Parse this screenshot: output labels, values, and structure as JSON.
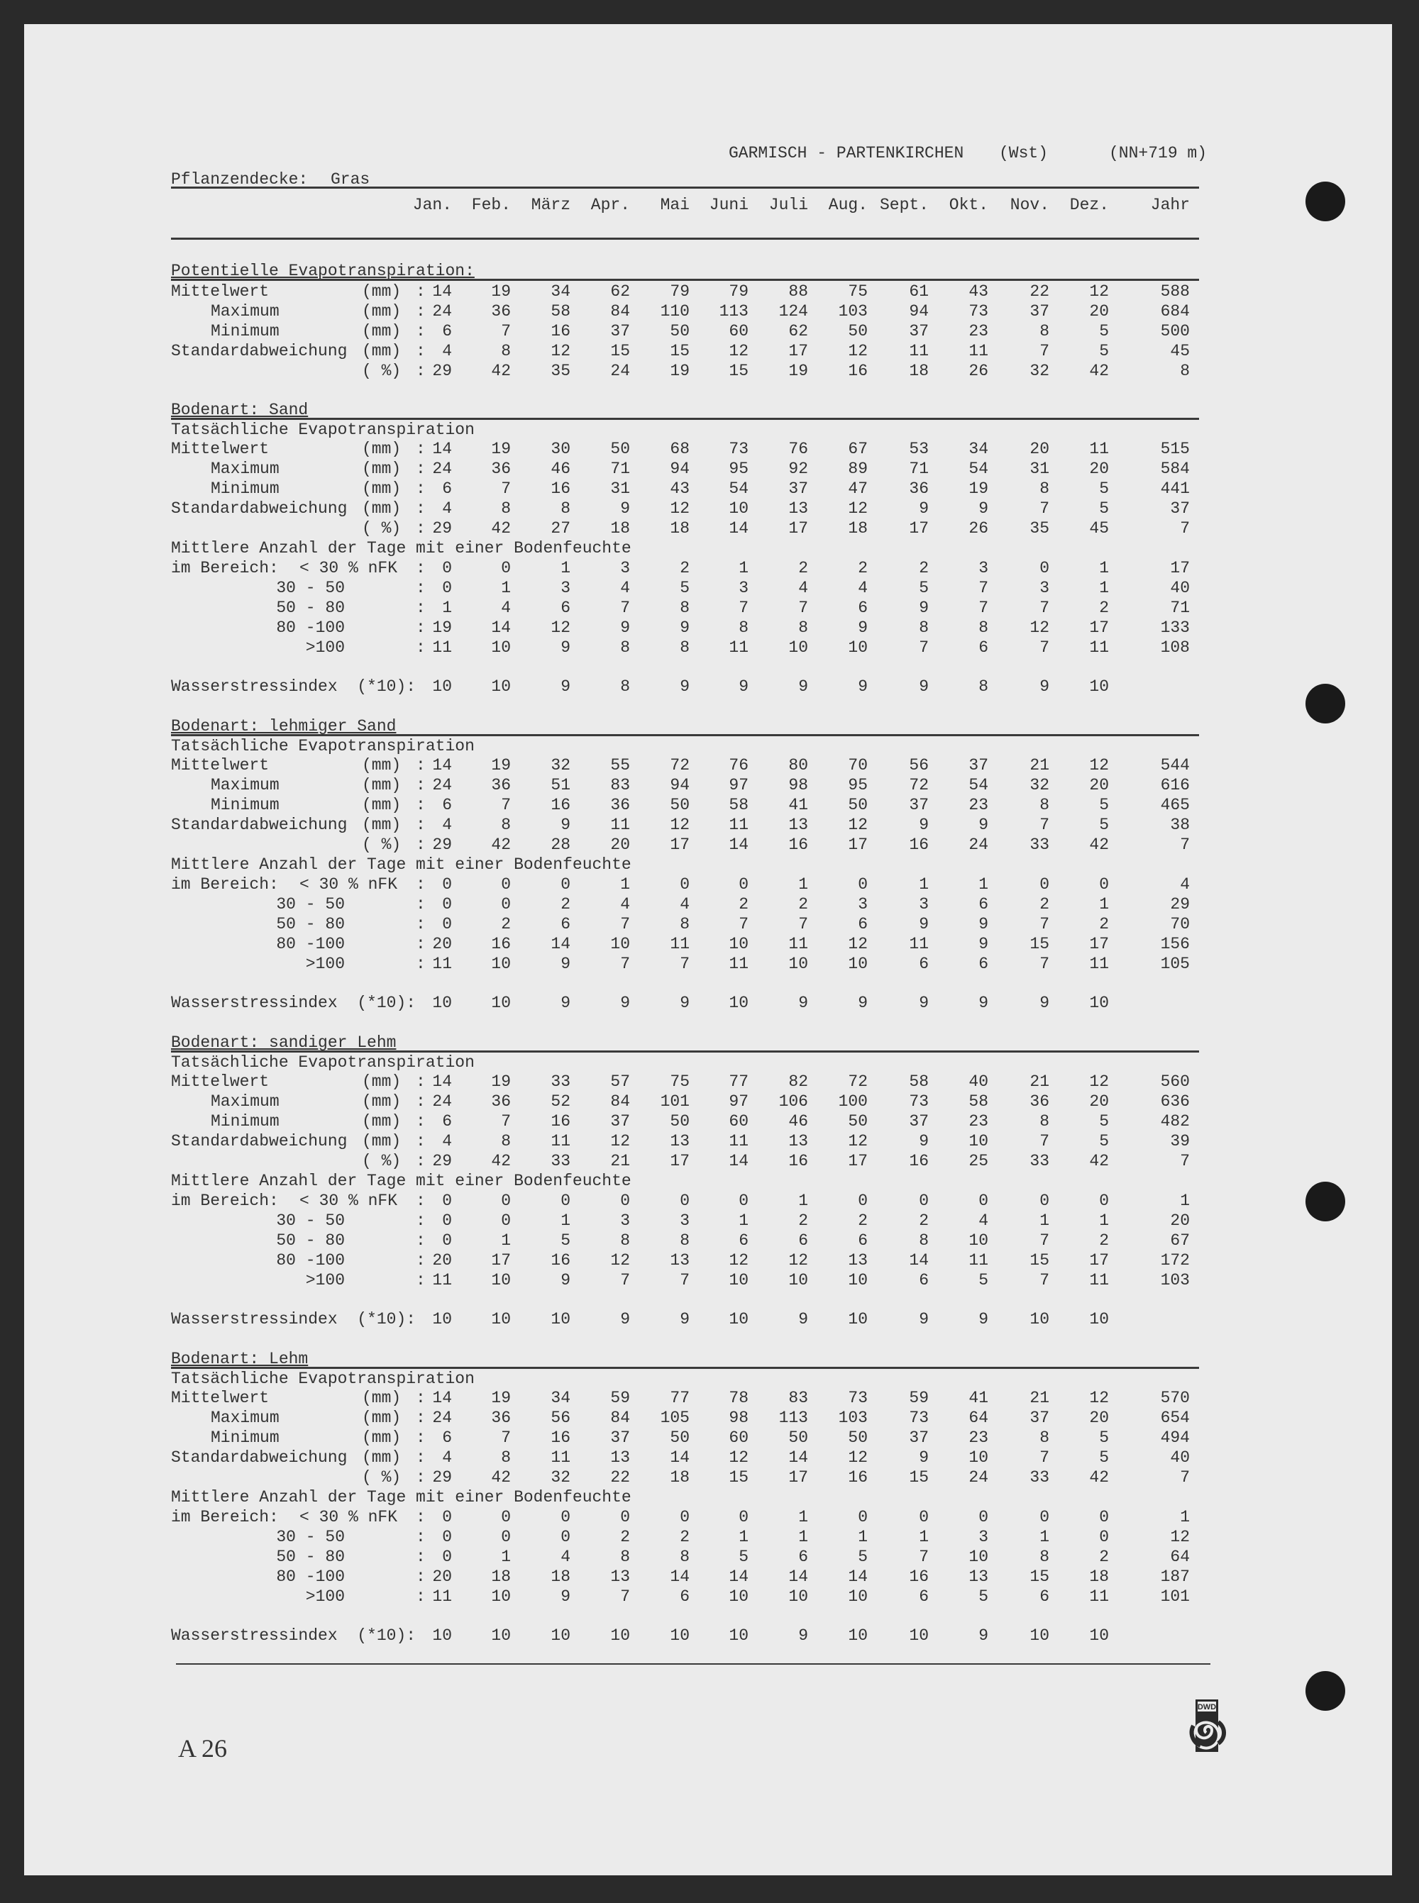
{
  "header": {
    "station": "GARMISCH - PARTENKIRCHEN",
    "station_type": "(Wst)",
    "elevation": "(NN+719 m)"
  },
  "cover": {
    "label": "Pflanzendecke:",
    "value": "Gras"
  },
  "months": [
    "Jan.",
    "Feb.",
    "März",
    "Apr.",
    "Mai",
    "Juni",
    "Juli",
    "Aug.",
    "Sept.",
    "Okt.",
    "Nov.",
    "Dez.",
    "Jahr"
  ],
  "potential": {
    "title": "Potentielle Evapotranspiration:",
    "rows": [
      {
        "label": "Mittelwert",
        "unit": "(mm)",
        "values": [
          "14",
          "19",
          "34",
          "62",
          "79",
          "79",
          "88",
          "75",
          "61",
          "43",
          "22",
          "12",
          "588"
        ]
      },
      {
        "label": "Maximum",
        "unit": "(mm)",
        "values": [
          "24",
          "36",
          "58",
          "84",
          "110",
          "113",
          "124",
          "103",
          "94",
          "73",
          "37",
          "20",
          "684"
        ]
      },
      {
        "label": "Minimum",
        "unit": "(mm)",
        "values": [
          "6",
          "7",
          "16",
          "37",
          "50",
          "60",
          "62",
          "50",
          "37",
          "23",
          "8",
          "5",
          "500"
        ]
      },
      {
        "label": "Standardabweichung",
        "unit": "(mm)",
        "values": [
          "4",
          "8",
          "12",
          "15",
          "15",
          "12",
          "17",
          "12",
          "11",
          "11",
          "7",
          "5",
          "45"
        ]
      },
      {
        "label": "",
        "unit": "( %)",
        "values": [
          "29",
          "42",
          "35",
          "24",
          "19",
          "15",
          "19",
          "16",
          "18",
          "26",
          "32",
          "42",
          "8"
        ]
      }
    ]
  },
  "soils": [
    {
      "title": "Bodenart: Sand",
      "subtitle": "Tatsächliche Evapotranspiration",
      "rows": [
        {
          "label": "Mittelwert",
          "unit": "(mm)",
          "values": [
            "14",
            "19",
            "30",
            "50",
            "68",
            "73",
            "76",
            "67",
            "53",
            "34",
            "20",
            "11",
            "515"
          ]
        },
        {
          "label": "Maximum",
          "unit": "(mm)",
          "values": [
            "24",
            "36",
            "46",
            "71",
            "94",
            "95",
            "92",
            "89",
            "71",
            "54",
            "31",
            "20",
            "584"
          ]
        },
        {
          "label": "Minimum",
          "unit": "(mm)",
          "values": [
            "6",
            "7",
            "16",
            "31",
            "43",
            "54",
            "37",
            "47",
            "36",
            "19",
            "8",
            "5",
            "441"
          ]
        },
        {
          "label": "Standardabweichung",
          "unit": "(mm)",
          "values": [
            "4",
            "8",
            "8",
            "9",
            "12",
            "10",
            "13",
            "12",
            "9",
            "9",
            "7",
            "5",
            "37"
          ]
        },
        {
          "label": "",
          "unit": "( %)",
          "values": [
            "29",
            "42",
            "27",
            "18",
            "18",
            "14",
            "17",
            "18",
            "17",
            "26",
            "35",
            "45",
            "7"
          ]
        }
      ],
      "moisture_title": "Mittlere Anzahl der Tage mit einer Bodenfeuchte",
      "moisture_prefix": "im Bereich:",
      "moisture": [
        {
          "label": "< 30 % nFK",
          "values": [
            "0",
            "0",
            "1",
            "3",
            "2",
            "1",
            "2",
            "2",
            "2",
            "3",
            "0",
            "1",
            "17"
          ]
        },
        {
          "label": "30 - 50",
          "values": [
            "0",
            "1",
            "3",
            "4",
            "5",
            "3",
            "4",
            "4",
            "5",
            "7",
            "3",
            "1",
            "40"
          ]
        },
        {
          "label": "50 - 80",
          "values": [
            "1",
            "4",
            "6",
            "7",
            "8",
            "7",
            "7",
            "6",
            "9",
            "7",
            "7",
            "2",
            "71"
          ]
        },
        {
          "label": "80 -100",
          "values": [
            "19",
            "14",
            "12",
            "9",
            "9",
            "8",
            "8",
            "9",
            "8",
            "8",
            "12",
            "17",
            "133"
          ]
        },
        {
          "label": ">100",
          "values": [
            "11",
            "10",
            "9",
            "8",
            "8",
            "11",
            "10",
            "10",
            "7",
            "6",
            "7",
            "11",
            "108"
          ]
        }
      ],
      "stress": {
        "label": "Wasserstressindex  (*10):",
        "values": [
          "10",
          "10",
          "9",
          "8",
          "9",
          "9",
          "9",
          "9",
          "9",
          "8",
          "9",
          "10"
        ]
      }
    },
    {
      "title": "Bodenart: lehmiger Sand",
      "subtitle": "Tatsächliche Evapotranspiration",
      "rows": [
        {
          "label": "Mittelwert",
          "unit": "(mm)",
          "values": [
            "14",
            "19",
            "32",
            "55",
            "72",
            "76",
            "80",
            "70",
            "56",
            "37",
            "21",
            "12",
            "544"
          ]
        },
        {
          "label": "Maximum",
          "unit": "(mm)",
          "values": [
            "24",
            "36",
            "51",
            "83",
            "94",
            "97",
            "98",
            "95",
            "72",
            "54",
            "32",
            "20",
            "616"
          ]
        },
        {
          "label": "Minimum",
          "unit": "(mm)",
          "values": [
            "6",
            "7",
            "16",
            "36",
            "50",
            "58",
            "41",
            "50",
            "37",
            "23",
            "8",
            "5",
            "465"
          ]
        },
        {
          "label": "Standardabweichung",
          "unit": "(mm)",
          "values": [
            "4",
            "8",
            "9",
            "11",
            "12",
            "11",
            "13",
            "12",
            "9",
            "9",
            "7",
            "5",
            "38"
          ]
        },
        {
          "label": "",
          "unit": "( %)",
          "values": [
            "29",
            "42",
            "28",
            "20",
            "17",
            "14",
            "16",
            "17",
            "16",
            "24",
            "33",
            "42",
            "7"
          ]
        }
      ],
      "moisture_title": "Mittlere Anzahl der Tage mit einer Bodenfeuchte",
      "moisture_prefix": "im Bereich:",
      "moisture": [
        {
          "label": "< 30 % nFK",
          "values": [
            "0",
            "0",
            "0",
            "1",
            "0",
            "0",
            "1",
            "0",
            "1",
            "1",
            "0",
            "0",
            "4"
          ]
        },
        {
          "label": "30 - 50",
          "values": [
            "0",
            "0",
            "2",
            "4",
            "4",
            "2",
            "2",
            "3",
            "3",
            "6",
            "2",
            "1",
            "29"
          ]
        },
        {
          "label": "50 - 80",
          "values": [
            "0",
            "2",
            "6",
            "7",
            "8",
            "7",
            "7",
            "6",
            "9",
            "9",
            "7",
            "2",
            "70"
          ]
        },
        {
          "label": "80 -100",
          "values": [
            "20",
            "16",
            "14",
            "10",
            "11",
            "10",
            "11",
            "12",
            "11",
            "9",
            "15",
            "17",
            "156"
          ]
        },
        {
          "label": ">100",
          "values": [
            "11",
            "10",
            "9",
            "7",
            "7",
            "11",
            "10",
            "10",
            "6",
            "6",
            "7",
            "11",
            "105"
          ]
        }
      ],
      "stress": {
        "label": "Wasserstressindex  (*10):",
        "values": [
          "10",
          "10",
          "9",
          "9",
          "9",
          "10",
          "9",
          "9",
          "9",
          "9",
          "9",
          "10"
        ]
      }
    },
    {
      "title": "Bodenart: sandiger Lehm",
      "subtitle": "Tatsächliche Evapotranspiration",
      "rows": [
        {
          "label": "Mittelwert",
          "unit": "(mm)",
          "values": [
            "14",
            "19",
            "33",
            "57",
            "75",
            "77",
            "82",
            "72",
            "58",
            "40",
            "21",
            "12",
            "560"
          ]
        },
        {
          "label": "Maximum",
          "unit": "(mm)",
          "values": [
            "24",
            "36",
            "52",
            "84",
            "101",
            "97",
            "106",
            "100",
            "73",
            "58",
            "36",
            "20",
            "636"
          ]
        },
        {
          "label": "Minimum",
          "unit": "(mm)",
          "values": [
            "6",
            "7",
            "16",
            "37",
            "50",
            "60",
            "46",
            "50",
            "37",
            "23",
            "8",
            "5",
            "482"
          ]
        },
        {
          "label": "Standardabweichung",
          "unit": "(mm)",
          "values": [
            "4",
            "8",
            "11",
            "12",
            "13",
            "11",
            "13",
            "12",
            "9",
            "10",
            "7",
            "5",
            "39"
          ]
        },
        {
          "label": "",
          "unit": "( %)",
          "values": [
            "29",
            "42",
            "33",
            "21",
            "17",
            "14",
            "16",
            "17",
            "16",
            "25",
            "33",
            "42",
            "7"
          ]
        }
      ],
      "moisture_title": "Mittlere Anzahl der Tage mit einer Bodenfeuchte",
      "moisture_prefix": "im Bereich:",
      "moisture": [
        {
          "label": "< 30 % nFK",
          "values": [
            "0",
            "0",
            "0",
            "0",
            "0",
            "0",
            "1",
            "0",
            "0",
            "0",
            "0",
            "0",
            "1"
          ]
        },
        {
          "label": "30 - 50",
          "values": [
            "0",
            "0",
            "1",
            "3",
            "3",
            "1",
            "2",
            "2",
            "2",
            "4",
            "1",
            "1",
            "20"
          ]
        },
        {
          "label": "50 - 80",
          "values": [
            "0",
            "1",
            "5",
            "8",
            "8",
            "6",
            "6",
            "6",
            "8",
            "10",
            "7",
            "2",
            "67"
          ]
        },
        {
          "label": "80 -100",
          "values": [
            "20",
            "17",
            "16",
            "12",
            "13",
            "12",
            "12",
            "13",
            "14",
            "11",
            "15",
            "17",
            "172"
          ]
        },
        {
          "label": ">100",
          "values": [
            "11",
            "10",
            "9",
            "7",
            "7",
            "10",
            "10",
            "10",
            "6",
            "5",
            "7",
            "11",
            "103"
          ]
        }
      ],
      "stress": {
        "label": "Wasserstressindex  (*10):",
        "values": [
          "10",
          "10",
          "10",
          "9",
          "9",
          "10",
          "9",
          "10",
          "9",
          "9",
          "10",
          "10"
        ]
      }
    },
    {
      "title": "Bodenart: Lehm",
      "subtitle": "Tatsächliche Evapotranspiration",
      "rows": [
        {
          "label": "Mittelwert",
          "unit": "(mm)",
          "values": [
            "14",
            "19",
            "34",
            "59",
            "77",
            "78",
            "83",
            "73",
            "59",
            "41",
            "21",
            "12",
            "570"
          ]
        },
        {
          "label": "Maximum",
          "unit": "(mm)",
          "values": [
            "24",
            "36",
            "56",
            "84",
            "105",
            "98",
            "113",
            "103",
            "73",
            "64",
            "37",
            "20",
            "654"
          ]
        },
        {
          "label": "Minimum",
          "unit": "(mm)",
          "values": [
            "6",
            "7",
            "16",
            "37",
            "50",
            "60",
            "50",
            "50",
            "37",
            "23",
            "8",
            "5",
            "494"
          ]
        },
        {
          "label": "Standardabweichung",
          "unit": "(mm)",
          "values": [
            "4",
            "8",
            "11",
            "13",
            "14",
            "12",
            "14",
            "12",
            "9",
            "10",
            "7",
            "5",
            "40"
          ]
        },
        {
          "label": "",
          "unit": "( %)",
          "values": [
            "29",
            "42",
            "32",
            "22",
            "18",
            "15",
            "17",
            "16",
            "15",
            "24",
            "33",
            "42",
            "7"
          ]
        }
      ],
      "moisture_title": "Mittlere Anzahl der Tage mit einer Bodenfeuchte",
      "moisture_prefix": "im Bereich:",
      "moisture": [
        {
          "label": "< 30 % nFK",
          "values": [
            "0",
            "0",
            "0",
            "0",
            "0",
            "0",
            "1",
            "0",
            "0",
            "0",
            "0",
            "0",
            "1"
          ]
        },
        {
          "label": "30 - 50",
          "values": [
            "0",
            "0",
            "0",
            "2",
            "2",
            "1",
            "1",
            "1",
            "1",
            "3",
            "1",
            "0",
            "12"
          ]
        },
        {
          "label": "50 - 80",
          "values": [
            "0",
            "1",
            "4",
            "8",
            "8",
            "5",
            "6",
            "5",
            "7",
            "10",
            "8",
            "2",
            "64"
          ]
        },
        {
          "label": "80 -100",
          "values": [
            "20",
            "18",
            "18",
            "13",
            "14",
            "14",
            "14",
            "14",
            "16",
            "13",
            "15",
            "18",
            "187"
          ]
        },
        {
          "label": ">100",
          "values": [
            "11",
            "10",
            "9",
            "7",
            "6",
            "10",
            "10",
            "10",
            "6",
            "5",
            "6",
            "11",
            "101"
          ]
        }
      ],
      "stress": {
        "label": "Wasserstressindex  (*10):",
        "values": [
          "10",
          "10",
          "10",
          "10",
          "10",
          "10",
          "9",
          "10",
          "10",
          "9",
          "10",
          "10"
        ]
      }
    }
  ],
  "footer": {
    "page": "A 26",
    "logo_text": "DWD"
  }
}
